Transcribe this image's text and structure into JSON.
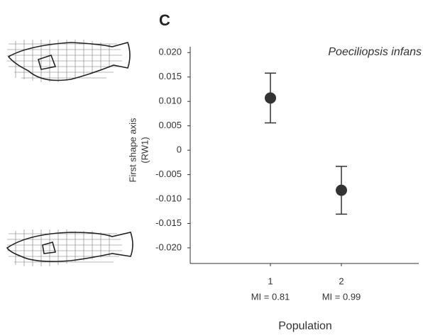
{
  "chart_data": {
    "type": "errorbar",
    "panel_label": "C",
    "annotation": "Poeciliopsis infans",
    "x_label": "Population",
    "y_label": [
      "First shape axis",
      "(RW1)"
    ],
    "categories": [
      "1",
      "2"
    ],
    "category_notes": [
      "MI = 0.81",
      "MI = 0.99"
    ],
    "series": [
      {
        "name": "RW1",
        "color": "#333333",
        "values": [
          0.0107,
          -0.0082
        ],
        "errors": [
          0.0051,
          0.0049
        ]
      }
    ],
    "ylim": [
      -0.0232,
      0.0212
    ],
    "yticks": [
      {
        "value": 0.02,
        "label": "0.020"
      },
      {
        "value": 0.015,
        "label": "0.015"
      },
      {
        "value": 0.01,
        "label": "0.010"
      },
      {
        "value": 0.005,
        "label": "0.005"
      },
      0,
      {
        "value": -0.005,
        "label": "-0.005"
      },
      {
        "value": -0.01,
        "label": "-0.010"
      },
      {
        "value": -0.015,
        "label": "-0.015"
      },
      {
        "value": -0.02,
        "label": "-0.020"
      }
    ]
  }
}
